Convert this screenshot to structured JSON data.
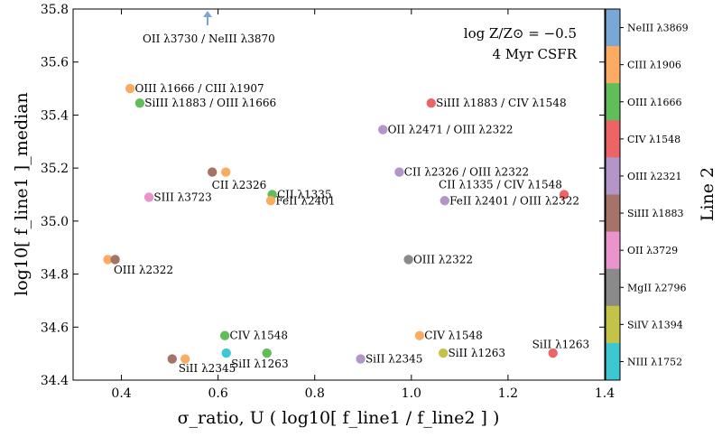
{
  "chart_data": {
    "type": "scatter",
    "xlabel": "σ_ratio, U ( log10[ f_line1 / f_line2 ] )",
    "ylabel": "log10[ f_line1 ]_median",
    "xlim": [
      0.3,
      1.4
    ],
    "ylim": [
      34.4,
      35.8
    ],
    "x_ticks": [
      "0.4",
      "0.6",
      "0.8",
      "1.0",
      "1.2",
      "1.4"
    ],
    "y_ticks": [
      "34.4",
      "34.6",
      "34.8",
      "35.0",
      "35.2",
      "35.4",
      "35.6",
      "35.8"
    ],
    "annotation": [
      "log Z/Z⊙ = −0.5",
      "4 Myr CSFR"
    ],
    "arrow_label": "OII λ3730 / NeIII λ3870",
    "arrow_point": {
      "x": 0.585,
      "y": 35.8
    },
    "colorbar": {
      "title": "Line 2",
      "entries": [
        {
          "label": "NeIII λ3869",
          "color": "#7aa8d6"
        },
        {
          "label": "CIII λ1906",
          "color": "#fcac62"
        },
        {
          "label": "OIII λ1666",
          "color": "#60bd58"
        },
        {
          "label": "CIV λ1548",
          "color": "#ec6466"
        },
        {
          "label": "OIII λ2321",
          "color": "#b395c9"
        },
        {
          "label": "SiIII λ1883",
          "color": "#a67368"
        },
        {
          "label": "OII λ3729",
          "color": "#ea93cc"
        },
        {
          "label": "MgII λ2796",
          "color": "#8a8a8a"
        },
        {
          "label": "SiIV λ1394",
          "color": "#c3c34a"
        },
        {
          "label": "NIII λ1752",
          "color": "#3fc6d3"
        }
      ]
    },
    "points": [
      {
        "x": 0.418,
        "y": 35.5,
        "color": "#fcac62"
      },
      {
        "x": 0.438,
        "y": 35.445,
        "color": "#60bd58"
      },
      {
        "x": 1.041,
        "y": 35.445,
        "color": "#ec6466"
      },
      {
        "x": 0.941,
        "y": 35.345,
        "color": "#b395c9"
      },
      {
        "x": 0.588,
        "y": 35.185,
        "color": "#a67368"
      },
      {
        "x": 0.616,
        "y": 35.185,
        "color": "#fcac62"
      },
      {
        "x": 0.975,
        "y": 35.185,
        "color": "#b395c9"
      },
      {
        "x": 0.457,
        "y": 35.09,
        "color": "#ea93cc"
      },
      {
        "x": 0.712,
        "y": 35.1,
        "color": "#60bd58"
      },
      {
        "x": 0.709,
        "y": 35.077,
        "color": "#fcac62"
      },
      {
        "x": 1.316,
        "y": 35.1,
        "color": "#ec6466"
      },
      {
        "x": 1.069,
        "y": 35.077,
        "color": "#b395c9"
      },
      {
        "x": 0.372,
        "y": 34.855,
        "color": "#fcac62"
      },
      {
        "x": 0.387,
        "y": 34.855,
        "color": "#a67368"
      },
      {
        "x": 0.994,
        "y": 34.855,
        "color": "#8a8a8a"
      },
      {
        "x": 0.614,
        "y": 34.568,
        "color": "#60bd58"
      },
      {
        "x": 1.017,
        "y": 34.568,
        "color": "#fcac62"
      },
      {
        "x": 0.617,
        "y": 34.502,
        "color": "#3fc6d3"
      },
      {
        "x": 0.701,
        "y": 34.502,
        "color": "#60bd58"
      },
      {
        "x": 1.066,
        "y": 34.502,
        "color": "#c3c34a"
      },
      {
        "x": 1.293,
        "y": 34.502,
        "color": "#ec6466"
      },
      {
        "x": 0.505,
        "y": 34.48,
        "color": "#a67368"
      },
      {
        "x": 0.532,
        "y": 34.48,
        "color": "#fcac62"
      },
      {
        "x": 0.895,
        "y": 34.48,
        "color": "#b395c9"
      }
    ],
    "labels": [
      {
        "text": "OIII λ1666 / CIII λ1907",
        "x": 0.428,
        "y": 35.5,
        "anchor": "start"
      },
      {
        "text": "SiIII λ1883 / OIII λ1666",
        "x": 0.448,
        "y": 35.445,
        "anchor": "start"
      },
      {
        "text": "SiIII λ1883 / CIV λ1548",
        "x": 1.051,
        "y": 35.445,
        "anchor": "start"
      },
      {
        "text": "OII λ2471 / OIII λ2322",
        "x": 0.951,
        "y": 35.345,
        "anchor": "start"
      },
      {
        "text": "CII λ2326",
        "x": 0.587,
        "y": 35.135,
        "anchor": "start"
      },
      {
        "text": "CII λ2326 / OIII λ2322",
        "x": 0.985,
        "y": 35.185,
        "anchor": "start"
      },
      {
        "text": "CII λ1335 / CIV λ1548",
        "x": 1.312,
        "y": 35.138,
        "anchor": "end"
      },
      {
        "text": "SIII λ3723",
        "x": 0.467,
        "y": 35.09,
        "anchor": "start"
      },
      {
        "text": "CII λ1335",
        "x": 0.722,
        "y": 35.1,
        "anchor": "start"
      },
      {
        "text": "FeII λ2401",
        "x": 0.719,
        "y": 35.077,
        "anchor": "start"
      },
      {
        "text": "FeII λ2401 / OIII λ2322",
        "x": 1.079,
        "y": 35.077,
        "anchor": "start"
      },
      {
        "text": "OIII λ2322",
        "x": 0.384,
        "y": 34.815,
        "anchor": "start"
      },
      {
        "text": "OIII λ2322",
        "x": 1.004,
        "y": 34.855,
        "anchor": "start"
      },
      {
        "text": "CIV λ1548",
        "x": 0.624,
        "y": 34.568,
        "anchor": "start"
      },
      {
        "text": "CIV λ1548",
        "x": 1.027,
        "y": 34.568,
        "anchor": "start"
      },
      {
        "text": "SiII λ1263",
        "x": 0.627,
        "y": 34.462,
        "anchor": "start"
      },
      {
        "text": "SiII λ1263",
        "x": 1.076,
        "y": 34.502,
        "anchor": "start"
      },
      {
        "text": "SiII λ1263",
        "x": 1.25,
        "y": 34.535,
        "anchor": "start"
      },
      {
        "text": "SiII λ2345",
        "x": 0.518,
        "y": 34.445,
        "anchor": "start"
      },
      {
        "text": "SiII λ2345",
        "x": 0.905,
        "y": 34.48,
        "anchor": "start"
      }
    ]
  }
}
